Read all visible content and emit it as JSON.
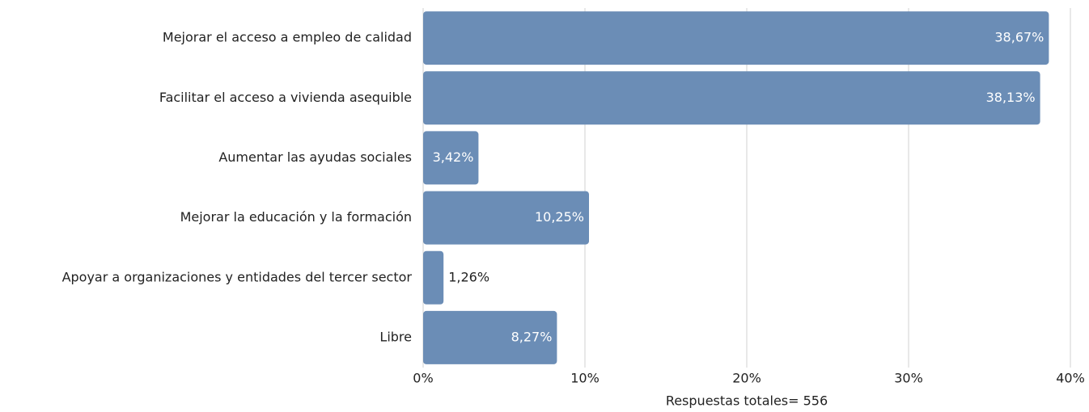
{
  "chart_data": {
    "type": "barh",
    "categories": [
      "Mejorar el acceso a empleo de calidad",
      "Facilitar el acceso a vivienda asequible",
      "Aumentar las ayudas sociales",
      "Mejorar la educación y la formación",
      "Apoyar a organizaciones y entidades del tercer sector",
      "Libre"
    ],
    "values": [
      38.67,
      38.13,
      3.42,
      10.25,
      1.26,
      8.27
    ],
    "value_labels": [
      "38,67%",
      "38,13%",
      "3,42%",
      "10,25%",
      "1,26%",
      "8,27%"
    ],
    "color": "#6b8db6",
    "xlim": [
      0,
      40
    ],
    "xticks": [
      {
        "value": 0,
        "label": "0%"
      },
      {
        "value": 10,
        "label": "10%"
      },
      {
        "value": 20,
        "label": "20%"
      },
      {
        "value": 30,
        "label": "30%"
      },
      {
        "value": 40,
        "label": "40%"
      }
    ],
    "xlabel": "Respuestas totales= 556",
    "grid": true
  }
}
